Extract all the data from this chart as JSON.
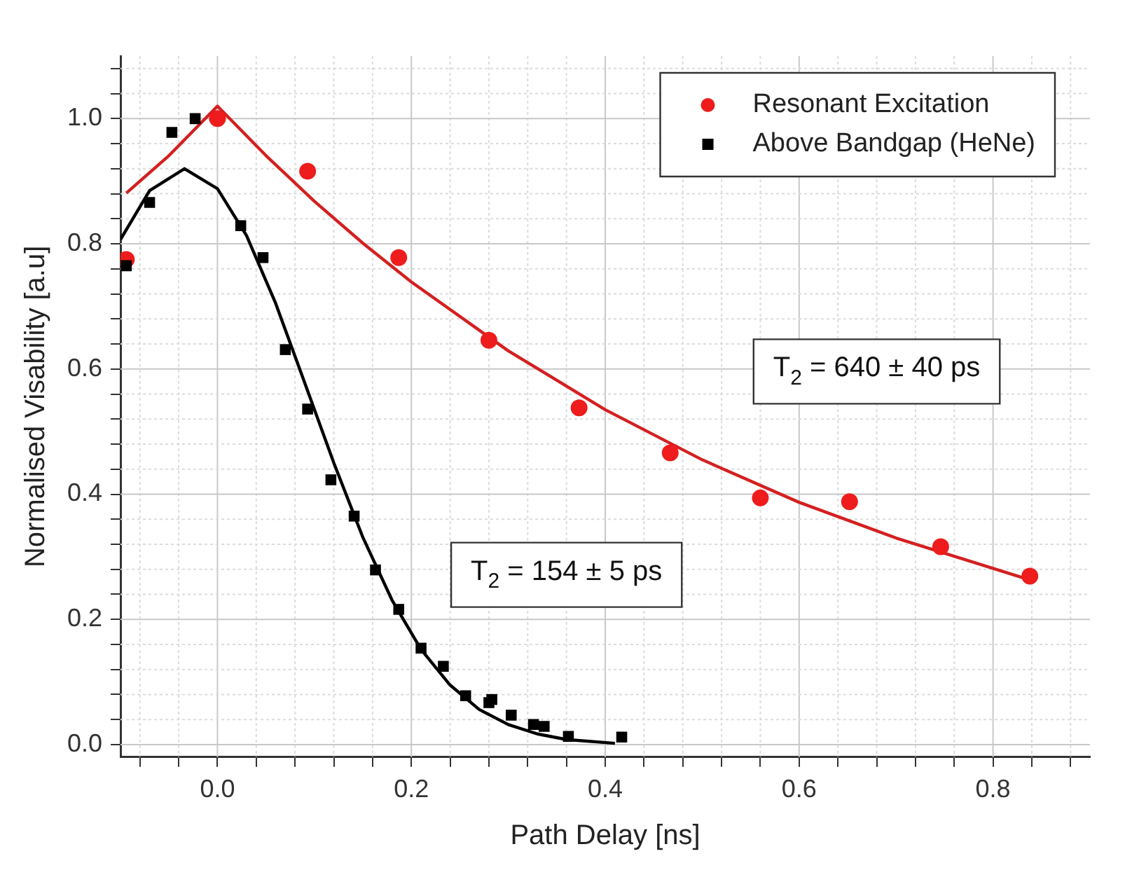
{
  "chart_data": {
    "type": "scatter",
    "xlabel": "Path Delay [ns]",
    "ylabel": "Normalised Visability [a.u]",
    "xlim": [
      -0.1,
      0.9
    ],
    "ylim": [
      -0.02,
      1.1
    ],
    "xticks": [
      {
        "value": -0.08,
        "label": null
      },
      {
        "value": -0.04,
        "label": null
      },
      {
        "value": 0,
        "label": "0.0"
      },
      {
        "value": 0.04,
        "label": null
      },
      {
        "value": 0.08,
        "label": null
      },
      {
        "value": 0.12,
        "label": null
      },
      {
        "value": 0.16,
        "label": null
      },
      0.2,
      {
        "value": 0.24,
        "label": null
      },
      {
        "value": 0.28,
        "label": null
      },
      {
        "value": 0.32,
        "label": null
      },
      {
        "value": 0.36,
        "label": null
      },
      0.4,
      {
        "value": 0.44,
        "label": null
      },
      {
        "value": 0.48,
        "label": null
      },
      {
        "value": 0.52,
        "label": null
      },
      {
        "value": 0.56,
        "label": null
      },
      0.6,
      {
        "value": 0.64,
        "label": null
      },
      {
        "value": 0.68,
        "label": null
      },
      {
        "value": 0.72,
        "label": null
      },
      {
        "value": 0.76,
        "label": null
      },
      0.8,
      {
        "value": 0.84,
        "label": null
      },
      {
        "value": 0.88,
        "label": null
      }
    ],
    "yticks": [
      {
        "value": 0,
        "label": "0.0"
      },
      {
        "value": 0.04,
        "label": null
      },
      {
        "value": 0.08,
        "label": null
      },
      {
        "value": 0.12,
        "label": null
      },
      {
        "value": 0.16,
        "label": null
      },
      0.2,
      {
        "value": 0.24,
        "label": null
      },
      {
        "value": 0.28,
        "label": null
      },
      {
        "value": 0.32,
        "label": null
      },
      {
        "value": 0.36,
        "label": null
      },
      0.4,
      {
        "value": 0.44,
        "label": null
      },
      {
        "value": 0.48,
        "label": null
      },
      {
        "value": 0.52,
        "label": null
      },
      {
        "value": 0.56,
        "label": null
      },
      0.6,
      {
        "value": 0.64,
        "label": null
      },
      {
        "value": 0.68,
        "label": null
      },
      {
        "value": 0.72,
        "label": null
      },
      {
        "value": 0.76,
        "label": null
      },
      0.8,
      {
        "value": 0.84,
        "label": null
      },
      {
        "value": 0.88,
        "label": null
      },
      {
        "value": 0.92,
        "label": null
      },
      {
        "value": 0.96,
        "label": null
      },
      {
        "value": 1,
        "label": "1.0"
      },
      {
        "value": 1.04,
        "label": null
      },
      {
        "value": 1.08,
        "label": null
      }
    ],
    "grid": true,
    "legend": "top right",
    "series": [
      {
        "name": "Resonant Excitation",
        "marker": "circle",
        "color": "#ee1c1c",
        "x": [
          -0.094,
          0.0,
          0.093,
          0.187,
          0.28,
          0.373,
          0.467,
          0.56,
          0.652,
          0.746,
          0.838
        ],
        "values": [
          0.775,
          1.0,
          0.916,
          0.778,
          0.646,
          0.538,
          0.466,
          0.394,
          0.388,
          0.316,
          0.269
        ]
      },
      {
        "name": "Above Bandgap (HeNe)",
        "marker": "square",
        "color": "#000000",
        "x": [
          -0.094,
          -0.07,
          -0.047,
          -0.023,
          0.024,
          0.047,
          0.07,
          0.093,
          0.117,
          0.141,
          0.163,
          0.187,
          0.21,
          0.233,
          0.256,
          0.28,
          0.283,
          0.303,
          0.326,
          0.337,
          0.362,
          0.417
        ],
        "values": [
          0.765,
          0.866,
          0.978,
          1.0,
          0.829,
          0.778,
          0.631,
          0.536,
          0.423,
          0.365,
          0.279,
          0.216,
          0.154,
          0.125,
          0.078,
          0.067,
          0.072,
          0.047,
          0.032,
          0.029,
          0.013,
          0.012
        ]
      },
      {
        "type": "line",
        "marker": "none",
        "color": "#d42020",
        "x": [
          -0.094,
          -0.05,
          0,
          0.05,
          0.1,
          0.15,
          0.2,
          0.3,
          0.4,
          0.5,
          0.6,
          0.7,
          0.838
        ],
        "values": [
          0.881,
          0.941,
          1.02,
          0.941,
          0.868,
          0.801,
          0.739,
          0.629,
          0.535,
          0.455,
          0.387,
          0.33,
          0.263
        ]
      },
      {
        "type": "line",
        "marker": "none",
        "color": "#000000",
        "x": [
          -0.1,
          -0.07,
          -0.034,
          0,
          0.03,
          0.06,
          0.09,
          0.12,
          0.15,
          0.18,
          0.21,
          0.24,
          0.27,
          0.3,
          0.33,
          0.36,
          0.41
        ],
        "values": [
          0.807,
          0.885,
          0.92,
          0.888,
          0.813,
          0.705,
          0.578,
          0.45,
          0.331,
          0.231,
          0.152,
          0.095,
          0.056,
          0.032,
          0.017,
          0.008,
          0.002
        ]
      }
    ],
    "annotations": [
      "T$_{2}$ = 640 ± 40 ps",
      "T$_{2}$ = 154 ± 5 ps"
    ]
  }
}
